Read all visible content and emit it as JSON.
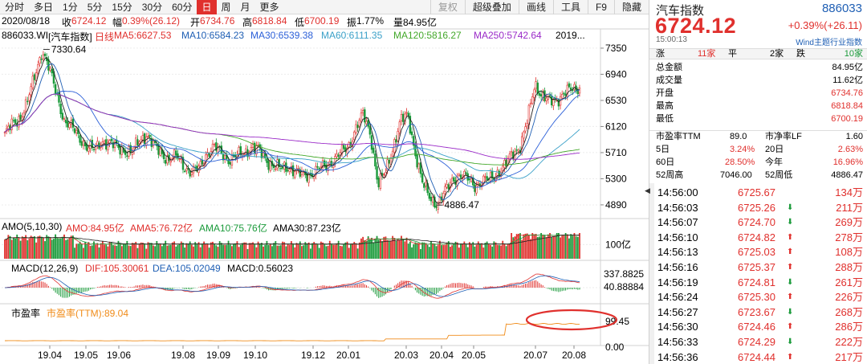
{
  "toolbar": {
    "left": [
      "分时",
      "多日",
      "1分",
      "5分",
      "15分",
      "30分",
      "60分",
      "日",
      "周",
      "月",
      "更多"
    ],
    "active_index": 7,
    "right": [
      "复权",
      "超级叠加",
      "画线",
      "工具",
      "F9",
      "隐藏"
    ]
  },
  "info": {
    "date": "2020/08/18",
    "open_label": "收",
    "open_value": "6724.12",
    "amp_label": "幅",
    "amp_value": "0.39%(26.12)",
    "o_label": "开",
    "o_value": "6734.76",
    "h_label": "高",
    "h_value": "6818.84",
    "l_label": "低",
    "l_value": "6700.19",
    "z_label": "振",
    "z_value": "1.77%",
    "vol_label": "量",
    "vol_value": "84.95亿"
  },
  "ma_header": {
    "code": "886033.WI",
    "name": "[汽车指数]",
    "period": "日线",
    "ma5": "MA5:6627.53",
    "ma10": "MA10:6584.23",
    "ma30": "MA30:6539.38",
    "ma60": "MA60:6111.35",
    "ma120": "MA120:5816.27",
    "ma250": "MA250:5742.64",
    "year": "2019..."
  },
  "amo_header": {
    "title": "AMO(5,10,30)",
    "amo": "AMO:84.95亿",
    "ama5": "AMA5:76.72亿",
    "ama10": "AMA10:75.76亿",
    "ama30": "AMA30:87.23亿"
  },
  "macd_header": {
    "title": "MACD(12,26,9)",
    "dif": "DIF:105.30061",
    "dea": "DEA:105.02049",
    "macd": "MACD:0.56023"
  },
  "pe_header": {
    "title": "市盈率",
    "value": "市盈率(TTM):89.04"
  },
  "right_axis": {
    "price_ticks": [
      "7350",
      "6940",
      "6530",
      "6120",
      "5710",
      "5300",
      "4890"
    ],
    "amo_tick": "100亿",
    "macd_ticks": [
      "337.8825",
      "40.88884"
    ],
    "pe_tick": "99.45",
    "pe_zero": "0.00"
  },
  "x_axis": [
    "19.04",
    "19.05",
    "19.06",
    "19.08",
    "19.09",
    "19.10",
    "19.12",
    "20.01",
    "20.03",
    "20.04",
    "20.05",
    "20.07",
    "20.08"
  ],
  "annotations": {
    "high": "7330.64",
    "low": "4886.47"
  },
  "chart_data": {
    "type": "line",
    "title": "",
    "series_desc": "Daily candlestick of 886033.WI with MA lines",
    "high": 7330.64,
    "low": 4886.47,
    "ylim": [
      4700,
      7450
    ],
    "series": [
      {
        "name": "close",
        "values": [
          6000,
          6150,
          6250,
          6500,
          6900,
          7330,
          7000,
          6600,
          6200,
          6100,
          5950,
          5800,
          5750,
          5900,
          5850,
          5800,
          5750,
          5700,
          5900,
          6000,
          5800,
          5700,
          5600,
          5650,
          5500,
          5400,
          5450,
          5700,
          5800,
          5700,
          5600,
          5650,
          5700,
          5800,
          5750,
          5600,
          5500,
          5450,
          5500,
          5400,
          5350,
          5380,
          5450,
          5500,
          5600,
          5700,
          5800,
          6100,
          6300,
          6000,
          5200,
          5400,
          5800,
          6200,
          6300,
          5700,
          5200,
          5000,
          4900,
          5100,
          5300,
          5350,
          5300,
          5200,
          5250,
          5300,
          5400,
          5500,
          5700,
          5800,
          6200,
          6800,
          6600,
          6500,
          6550,
          6650,
          6700,
          6724
        ]
      }
    ]
  },
  "quote": {
    "name": "汽车指数",
    "code": "886033",
    "price": "6724.12",
    "change": "+0.39%(+26.11)",
    "time": "15:00:13",
    "source": "Wind主题行业指数",
    "rise_label": "涨",
    "rise_count": "11家",
    "flat_label": "平",
    "flat_count": "2家",
    "fall_label": "跌",
    "fall_count": "10家",
    "rows": [
      {
        "label": "总金额",
        "value": "84.95亿"
      },
      {
        "label": "成交量",
        "value": "11.62亿"
      },
      {
        "label": "开盘",
        "value": "6734.76"
      },
      {
        "label": "最高",
        "value": "6818.84"
      },
      {
        "label": "最低",
        "value": "6700.19"
      }
    ],
    "pe_ttm_label": "市盈率TTM",
    "pe_ttm": "89.0",
    "pb_label": "市净率LF",
    "pb": "1.60",
    "d5_label": "5日",
    "d5": "3.24%",
    "d20_label": "20日",
    "d20": "2.63%",
    "d60_label": "60日",
    "d60": "28.50%",
    "ytd_label": "今年",
    "ytd": "16.96%",
    "w52h_label": "52周高",
    "w52h": "7046.00",
    "w52l_label": "52周低",
    "w52l": "4886.47"
  },
  "trades": [
    {
      "time": "14:56:00",
      "price": "6725.67",
      "dir": "",
      "vol": "134万"
    },
    {
      "time": "14:56:03",
      "price": "6725.26",
      "dir": "down",
      "vol": "211万"
    },
    {
      "time": "14:56:07",
      "price": "6724.70",
      "dir": "down",
      "vol": "269万"
    },
    {
      "time": "14:56:10",
      "price": "6724.82",
      "dir": "up",
      "vol": "278万"
    },
    {
      "time": "14:56:13",
      "price": "6725.03",
      "dir": "up",
      "vol": "108万"
    },
    {
      "time": "14:56:16",
      "price": "6725.37",
      "dir": "up",
      "vol": "288万"
    },
    {
      "time": "14:56:19",
      "price": "6724.81",
      "dir": "down",
      "vol": "261万"
    },
    {
      "time": "14:56:24",
      "price": "6725.30",
      "dir": "up",
      "vol": "226万"
    },
    {
      "time": "14:56:27",
      "price": "6723.67",
      "dir": "down",
      "vol": "268万"
    },
    {
      "time": "14:56:30",
      "price": "6724.46",
      "dir": "up",
      "vol": "286万"
    },
    {
      "time": "14:56:33",
      "price": "6724.29",
      "dir": "down",
      "vol": "222万"
    },
    {
      "time": "14:56:36",
      "price": "6724.44",
      "dir": "up",
      "vol": "217万"
    }
  ],
  "colors": {
    "up": "#e0302d",
    "down": "#1a9a3a",
    "ma5": "#222222",
    "ma10": "#1f5fb4",
    "ma30": "#2b5fd8",
    "ma60": "#3aa0c8",
    "ma120": "#43a82a",
    "ma250": "#9a2ac8",
    "circle": "#e0302d"
  }
}
